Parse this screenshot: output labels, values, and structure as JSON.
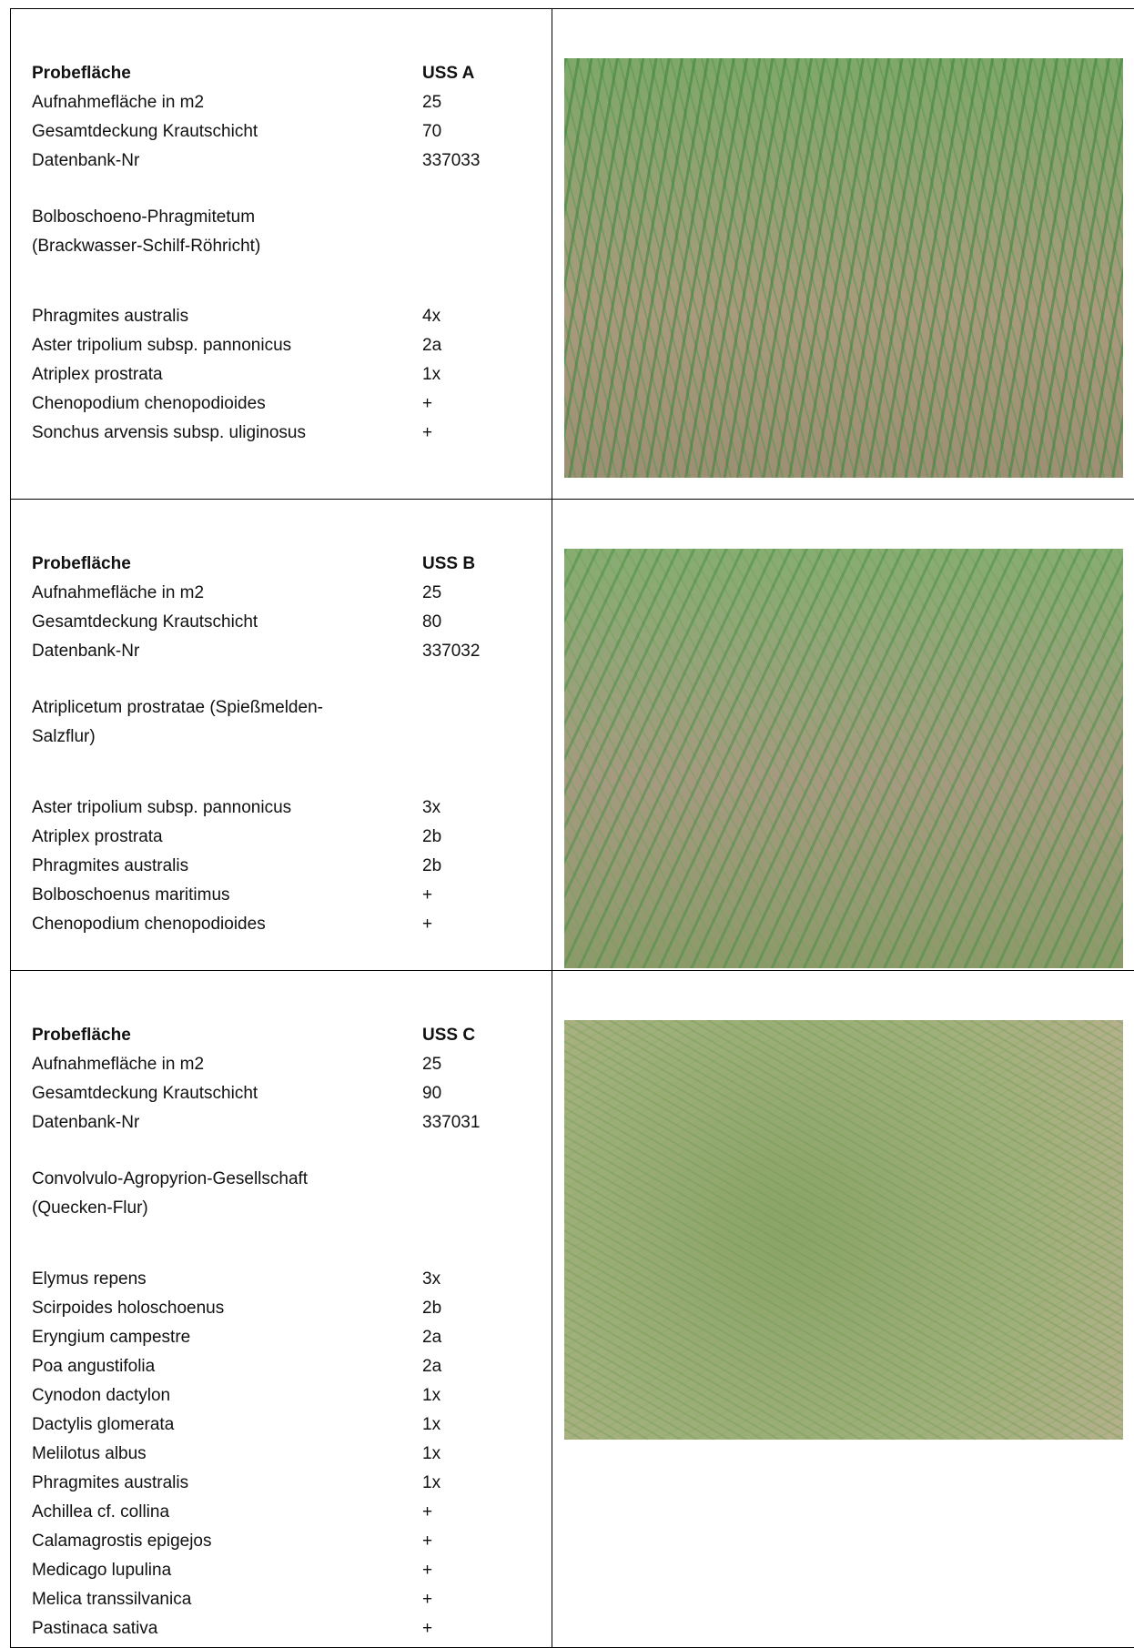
{
  "plots": [
    {
      "header": [
        [
          "Probefläche",
          "USS A"
        ],
        [
          "Aufnahmefläche in m2",
          "25"
        ],
        [
          "Gesamtdeckung Krautschicht",
          "70"
        ],
        [
          "Datenbank-Nr",
          "337033"
        ]
      ],
      "community": [
        "Bolboschoeno-Phragmitetum",
        "(Brackwasser-Schilf-Röhricht)"
      ],
      "species": [
        [
          "Phragmites australis",
          "4x"
        ],
        [
          "Aster tripolium subsp. pannonicus",
          "2a"
        ],
        [
          "Atriplex prostrata",
          "1x"
        ],
        [
          "Chenopodium chenopodioides",
          "+"
        ],
        [
          "Sonchus arvensis subsp. uliginosus",
          "+"
        ]
      ]
    },
    {
      "header": [
        [
          "Probefläche",
          "USS B"
        ],
        [
          "Aufnahmefläche in m2",
          "25"
        ],
        [
          "Gesamtdeckung Krautschicht",
          "80"
        ],
        [
          "Datenbank-Nr",
          "337032"
        ]
      ],
      "community": [
        "Atriplicetum prostratae (Spießmelden-",
        "Salzflur)"
      ],
      "species": [
        [
          "Aster tripolium subsp. pannonicus",
          "3x"
        ],
        [
          "Atriplex prostrata",
          "2b"
        ],
        [
          "Phragmites australis",
          "2b"
        ],
        [
          "Bolboschoenus maritimus",
          "+"
        ],
        [
          "Chenopodium chenopodioides",
          "+"
        ]
      ]
    },
    {
      "header": [
        [
          "Probefläche",
          "USS C"
        ],
        [
          "Aufnahmefläche in m2",
          "25"
        ],
        [
          "Gesamtdeckung Krautschicht",
          "90"
        ],
        [
          "Datenbank-Nr",
          "337031"
        ]
      ],
      "community": [
        "Convolvulo-Agropyrion-Gesellschaft",
        "(Quecken-Flur)"
      ],
      "species": [
        [
          "Elymus repens",
          "3x"
        ],
        [
          "Scirpoides holoschoenus",
          "2b"
        ],
        [
          "Eryngium campestre",
          "2a"
        ],
        [
          "Poa angustifolia",
          "2a"
        ],
        [
          "Cynodon dactylon",
          "1x"
        ],
        [
          "Dactylis glomerata",
          "1x"
        ],
        [
          "Melilotus albus",
          "1x"
        ],
        [
          "Phragmites australis",
          "1x"
        ],
        [
          "Achillea cf. collina",
          "+"
        ],
        [
          "Calamagrostis epigejos",
          "+"
        ],
        [
          "Medicago lupulina",
          "+"
        ],
        [
          "Melica transsilvanica",
          "+"
        ],
        [
          "Pastinaca sativa",
          "+"
        ]
      ]
    }
  ]
}
